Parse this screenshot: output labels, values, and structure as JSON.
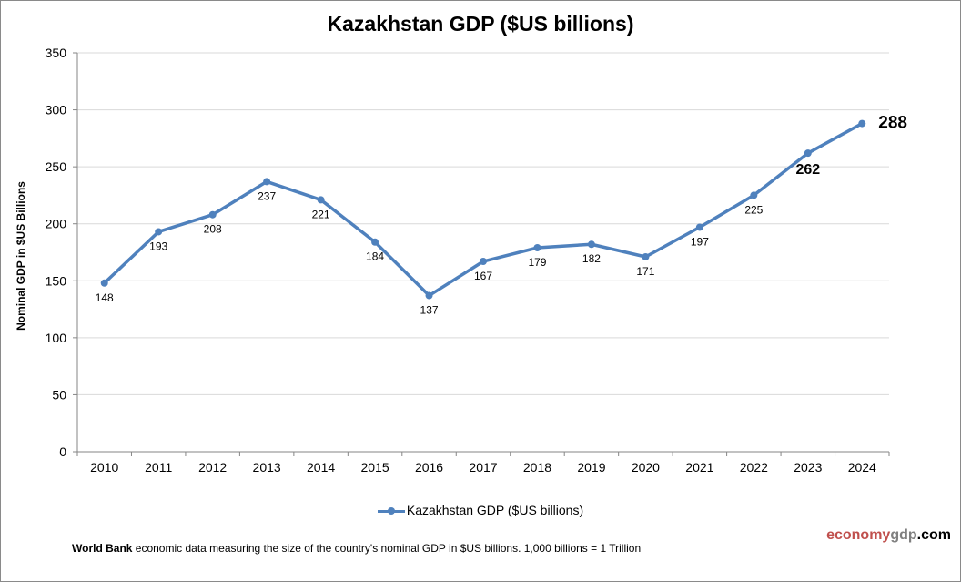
{
  "chart_data": {
    "type": "line",
    "title": "Kazakhstan GDP ($US billions)",
    "ylabel": "Nominal GDP in $US Billions",
    "xlabel": "",
    "categories": [
      "2010",
      "2011",
      "2012",
      "2013",
      "2014",
      "2015",
      "2016",
      "2017",
      "2018",
      "2019",
      "2020",
      "2021",
      "2022",
      "2023",
      "2024"
    ],
    "series": [
      {
        "name": "Kazakhstan GDP ($US billions)",
        "values": [
          148,
          193,
          208,
          237,
          221,
          184,
          137,
          167,
          179,
          182,
          171,
          197,
          225,
          262,
          288
        ],
        "color": "#4F81BD"
      }
    ],
    "ylim": [
      0,
      350
    ],
    "yticks": [
      0,
      50,
      100,
      150,
      200,
      250,
      300,
      350
    ],
    "grid": true,
    "legend": "bottom",
    "highlighted_labels": [
      "2023",
      "2024"
    ]
  },
  "footer": {
    "note_bold": "World Bank",
    "note_text": " economic data  measuring the size of the country's nominal GDP in $US billions. 1,000 billions = 1 Trillion",
    "brand_part1": "economy",
    "brand_part2": "gdp",
    "brand_part3": ".com",
    "brand_colors": [
      "#C0504D",
      "#808080",
      "#000000"
    ]
  }
}
